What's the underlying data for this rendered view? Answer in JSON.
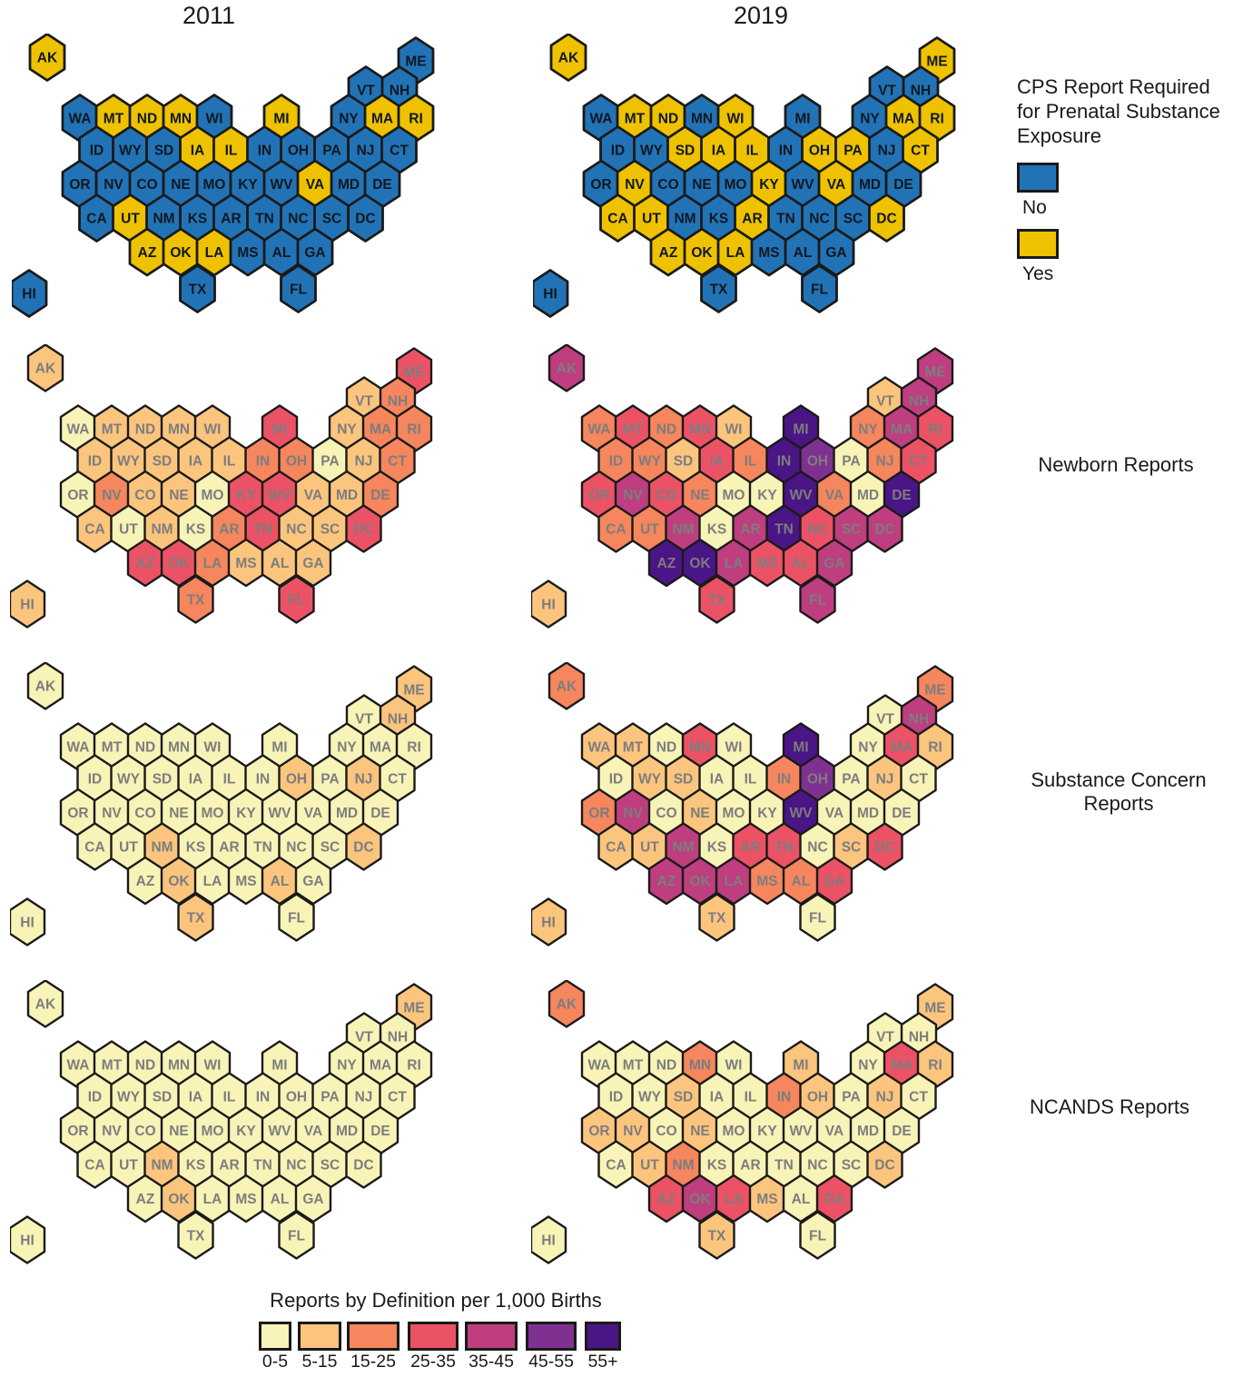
{
  "titles": {
    "col1": "2011",
    "col2": "2019"
  },
  "cps_legend": {
    "title": "CPS Report Required for Prenatal Substance Exposure",
    "items": [
      {
        "label": "No",
        "color": "#2273B6"
      },
      {
        "label": "Yes",
        "color": "#EEC200"
      }
    ]
  },
  "row_labels": [
    "Newborn Reports",
    "Substance Concern Reports",
    "NCANDS Reports"
  ],
  "bin_legend": {
    "title": "Reports by Definition per 1,000 Births",
    "bins": [
      {
        "label": "0-5",
        "color": "#F8F3B7"
      },
      {
        "label": "5-15",
        "color": "#FBC57E"
      },
      {
        "label": "15-25",
        "color": "#F5865D"
      },
      {
        "label": "25-35",
        "color": "#EC5265"
      },
      {
        "label": "35-45",
        "color": "#BE3E7F"
      },
      {
        "label": "45-55",
        "color": "#7F3192"
      },
      {
        "label": "55+",
        "color": "#4A1585"
      }
    ]
  },
  "chart_data": {
    "type": "heatmap",
    "subtype": "us-state-hexbin-map-grid",
    "unit": "Reports by Definition per 1,000 Births",
    "maps": [
      {
        "id": "cps-2011",
        "year": "2011",
        "measure": "CPS Report Required for Prenatal Substance Exposure",
        "type": "categorical",
        "values": {
          "ME": "No",
          "VT": "No",
          "NH": "No",
          "AK": "Yes",
          "WA": "No",
          "MT": "Yes",
          "ND": "Yes",
          "MN": "Yes",
          "WI": "No",
          "MI": "Yes",
          "NY": "No",
          "MA": "Yes",
          "RI": "Yes",
          "ID": "No",
          "WY": "No",
          "SD": "No",
          "IA": "Yes",
          "IL": "Yes",
          "IN": "No",
          "OH": "No",
          "PA": "No",
          "NJ": "No",
          "CT": "No",
          "OR": "No",
          "NV": "No",
          "CO": "No",
          "NE": "No",
          "MO": "No",
          "KY": "No",
          "WV": "No",
          "VA": "Yes",
          "MD": "No",
          "DE": "No",
          "CA": "No",
          "UT": "Yes",
          "NM": "No",
          "KS": "No",
          "AR": "No",
          "TN": "No",
          "NC": "No",
          "SC": "No",
          "DC": "No",
          "AZ": "Yes",
          "OK": "Yes",
          "LA": "Yes",
          "MS": "No",
          "AL": "No",
          "GA": "No",
          "TX": "No",
          "FL": "No",
          "HI": "No"
        }
      },
      {
        "id": "cps-2019",
        "year": "2019",
        "measure": "CPS Report Required for Prenatal Substance Exposure",
        "type": "categorical",
        "values": {
          "ME": "Yes",
          "VT": "No",
          "NH": "No",
          "AK": "Yes",
          "WA": "No",
          "MT": "Yes",
          "ND": "Yes",
          "MN": "No",
          "WI": "Yes",
          "MI": "No",
          "NY": "No",
          "MA": "Yes",
          "RI": "Yes",
          "ID": "No",
          "WY": "No",
          "SD": "Yes",
          "IA": "Yes",
          "IL": "Yes",
          "IN": "No",
          "OH": "Yes",
          "PA": "Yes",
          "NJ": "No",
          "CT": "Yes",
          "OR": "No",
          "NV": "Yes",
          "CO": "No",
          "NE": "No",
          "MO": "No",
          "KY": "Yes",
          "WV": "No",
          "VA": "Yes",
          "MD": "No",
          "DE": "No",
          "CA": "Yes",
          "UT": "Yes",
          "NM": "No",
          "KS": "No",
          "AR": "Yes",
          "TN": "No",
          "NC": "No",
          "SC": "No",
          "DC": "Yes",
          "AZ": "Yes",
          "OK": "Yes",
          "LA": "Yes",
          "MS": "No",
          "AL": "No",
          "GA": "No",
          "TX": "No",
          "FL": "No",
          "HI": "No"
        }
      },
      {
        "id": "newborn-2011",
        "year": "2011",
        "measure": "Newborn Reports",
        "type": "bins",
        "values": {
          "ME": "25-35",
          "VT": "5-15",
          "NH": "15-25",
          "AK": "5-15",
          "WA": "0-5",
          "MT": "5-15",
          "ND": "5-15",
          "MN": "5-15",
          "WI": "5-15",
          "MI": "25-35",
          "NY": "5-15",
          "MA": "15-25",
          "RI": "15-25",
          "ID": "5-15",
          "WY": "5-15",
          "SD": "5-15",
          "IA": "5-15",
          "IL": "5-15",
          "IN": "15-25",
          "OH": "15-25",
          "PA": "0-5",
          "NJ": "5-15",
          "CT": "15-25",
          "OR": "0-5",
          "NV": "15-25",
          "CO": "5-15",
          "NE": "5-15",
          "MO": "0-5",
          "KY": "25-35",
          "WV": "25-35",
          "VA": "5-15",
          "MD": "5-15",
          "DE": "15-25",
          "CA": "5-15",
          "UT": "0-5",
          "NM": "5-15",
          "KS": "0-5",
          "AR": "15-25",
          "TN": "25-35",
          "NC": "5-15",
          "SC": "5-15",
          "DC": "25-35",
          "AZ": "25-35",
          "OK": "25-35",
          "LA": "15-25",
          "MS": "5-15",
          "AL": "5-15",
          "GA": "5-15",
          "TX": "15-25",
          "FL": "25-35",
          "HI": "5-15"
        }
      },
      {
        "id": "newborn-2019",
        "year": "2019",
        "measure": "Newborn Reports",
        "type": "bins",
        "values": {
          "ME": "35-45",
          "VT": "5-15",
          "NH": "35-45",
          "AK": "35-45",
          "WA": "15-25",
          "MT": "25-35",
          "ND": "15-25",
          "MN": "25-35",
          "WI": "5-15",
          "MI": "55+",
          "NY": "15-25",
          "MA": "35-45",
          "RI": "25-35",
          "ID": "15-25",
          "WY": "15-25",
          "SD": "5-15",
          "IA": "25-35",
          "IL": "15-25",
          "IN": "55+",
          "OH": "45-55",
          "PA": "0-5",
          "NJ": "15-25",
          "CT": "25-35",
          "OR": "25-35",
          "NV": "35-45",
          "CO": "25-35",
          "NE": "15-25",
          "MO": "0-5",
          "KY": "0-5",
          "WV": "55+",
          "VA": "15-25",
          "MD": "0-5",
          "DE": "55+",
          "CA": "15-25",
          "UT": "15-25",
          "NM": "35-45",
          "KS": "0-5",
          "AR": "35-45",
          "TN": "55+",
          "NC": "25-35",
          "SC": "35-45",
          "DC": "35-45",
          "AZ": "55+",
          "OK": "55+",
          "LA": "35-45",
          "MS": "25-35",
          "AL": "25-35",
          "GA": "35-45",
          "TX": "25-35",
          "FL": "35-45",
          "HI": "5-15"
        }
      },
      {
        "id": "substance-2011",
        "year": "2011",
        "measure": "Substance Concern Reports",
        "type": "bins",
        "values": {
          "ME": "5-15",
          "VT": "0-5",
          "NH": "5-15",
          "AK": "0-5",
          "WA": "0-5",
          "MT": "0-5",
          "ND": "0-5",
          "MN": "0-5",
          "WI": "0-5",
          "MI": "0-5",
          "NY": "0-5",
          "MA": "0-5",
          "RI": "0-5",
          "ID": "0-5",
          "WY": "0-5",
          "SD": "0-5",
          "IA": "0-5",
          "IL": "0-5",
          "IN": "0-5",
          "OH": "5-15",
          "PA": "0-5",
          "NJ": "5-15",
          "CT": "0-5",
          "OR": "0-5",
          "NV": "0-5",
          "CO": "0-5",
          "NE": "0-5",
          "MO": "0-5",
          "KY": "0-5",
          "WV": "0-5",
          "VA": "0-5",
          "MD": "0-5",
          "DE": "0-5",
          "CA": "0-5",
          "UT": "0-5",
          "NM": "5-15",
          "KS": "0-5",
          "AR": "0-5",
          "TN": "0-5",
          "NC": "0-5",
          "SC": "0-5",
          "DC": "5-15",
          "AZ": "0-5",
          "OK": "5-15",
          "LA": "0-5",
          "MS": "0-5",
          "AL": "5-15",
          "GA": "0-5",
          "TX": "5-15",
          "FL": "0-5",
          "HI": "0-5"
        }
      },
      {
        "id": "substance-2019",
        "year": "2019",
        "measure": "Substance Concern Reports",
        "type": "bins",
        "values": {
          "ME": "15-25",
          "VT": "0-5",
          "NH": "35-45",
          "AK": "15-25",
          "WA": "5-15",
          "MT": "5-15",
          "ND": "0-5",
          "MN": "25-35",
          "WI": "0-5",
          "MI": "55+",
          "NY": "0-5",
          "MA": "25-35",
          "RI": "5-15",
          "ID": "0-5",
          "WY": "5-15",
          "SD": "5-15",
          "IA": "0-5",
          "IL": "0-5",
          "IN": "15-25",
          "OH": "45-55",
          "PA": "0-5",
          "NJ": "5-15",
          "CT": "0-5",
          "OR": "15-25",
          "NV": "35-45",
          "CO": "0-5",
          "NE": "5-15",
          "MO": "0-5",
          "KY": "0-5",
          "WV": "55+",
          "VA": "0-5",
          "MD": "0-5",
          "DE": "0-5",
          "CA": "5-15",
          "UT": "5-15",
          "NM": "35-45",
          "KS": "0-5",
          "AR": "25-35",
          "TN": "25-35",
          "NC": "0-5",
          "SC": "5-15",
          "DC": "25-35",
          "AZ": "35-45",
          "OK": "35-45",
          "LA": "35-45",
          "MS": "15-25",
          "AL": "15-25",
          "GA": "25-35",
          "TX": "5-15",
          "FL": "0-5",
          "HI": "5-15"
        }
      },
      {
        "id": "ncands-2011",
        "year": "2011",
        "measure": "NCANDS Reports",
        "type": "bins",
        "values": {
          "ME": "5-15",
          "VT": "0-5",
          "NH": "0-5",
          "AK": "0-5",
          "WA": "0-5",
          "MT": "0-5",
          "ND": "0-5",
          "MN": "0-5",
          "WI": "0-5",
          "MI": "0-5",
          "NY": "0-5",
          "MA": "0-5",
          "RI": "0-5",
          "ID": "0-5",
          "WY": "0-5",
          "SD": "0-5",
          "IA": "0-5",
          "IL": "0-5",
          "IN": "0-5",
          "OH": "0-5",
          "PA": "0-5",
          "NJ": "0-5",
          "CT": "0-5",
          "OR": "0-5",
          "NV": "0-5",
          "CO": "0-5",
          "NE": "0-5",
          "MO": "0-5",
          "KY": "0-5",
          "WV": "0-5",
          "VA": "0-5",
          "MD": "0-5",
          "DE": "0-5",
          "CA": "0-5",
          "UT": "0-5",
          "NM": "5-15",
          "KS": "0-5",
          "AR": "0-5",
          "TN": "0-5",
          "NC": "0-5",
          "SC": "0-5",
          "DC": "0-5",
          "AZ": "0-5",
          "OK": "5-15",
          "LA": "0-5",
          "MS": "0-5",
          "AL": "0-5",
          "GA": "0-5",
          "TX": "0-5",
          "FL": "0-5",
          "HI": "0-5"
        }
      },
      {
        "id": "ncands-2019",
        "year": "2019",
        "measure": "NCANDS Reports",
        "type": "bins",
        "values": {
          "ME": "5-15",
          "VT": "0-5",
          "NH": "0-5",
          "AK": "15-25",
          "WA": "0-5",
          "MT": "0-5",
          "ND": "0-5",
          "MN": "15-25",
          "WI": "0-5",
          "MI": "5-15",
          "NY": "0-5",
          "MA": "25-35",
          "RI": "5-15",
          "ID": "0-5",
          "WY": "0-5",
          "SD": "5-15",
          "IA": "0-5",
          "IL": "0-5",
          "IN": "15-25",
          "OH": "5-15",
          "PA": "0-5",
          "NJ": "5-15",
          "CT": "0-5",
          "OR": "5-15",
          "NV": "5-15",
          "CO": "0-5",
          "NE": "5-15",
          "MO": "0-5",
          "KY": "0-5",
          "WV": "0-5",
          "VA": "0-5",
          "MD": "0-5",
          "DE": "0-5",
          "CA": "0-5",
          "UT": "5-15",
          "NM": "15-25",
          "KS": "0-5",
          "AR": "0-5",
          "TN": "0-5",
          "NC": "0-5",
          "SC": "0-5",
          "DC": "5-15",
          "AZ": "25-35",
          "OK": "35-45",
          "LA": "25-35",
          "MS": "5-15",
          "AL": "0-5",
          "GA": "25-35",
          "TX": "5-15",
          "FL": "0-5",
          "HI": "0-5"
        }
      }
    ]
  }
}
